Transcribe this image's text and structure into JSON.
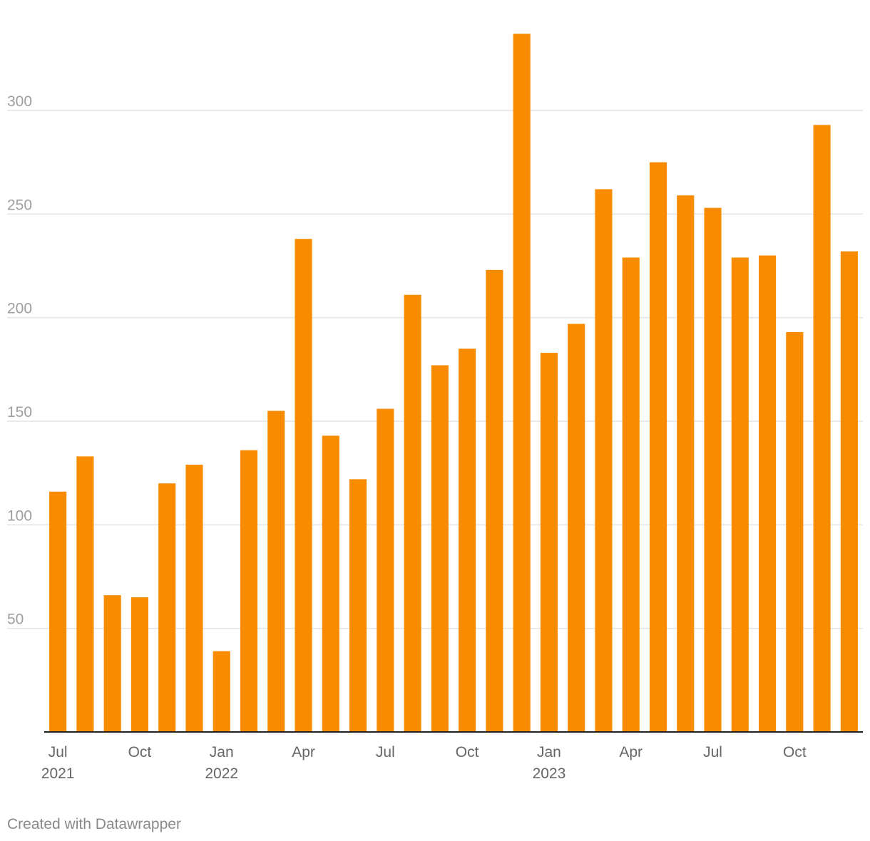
{
  "chart_data": {
    "type": "bar",
    "title": "",
    "xlabel": "",
    "ylabel": "",
    "ylim": [
      0,
      340
    ],
    "yticks": [
      50,
      100,
      150,
      200,
      250,
      300
    ],
    "categories": [
      "Jul 2021",
      "Aug 2021",
      "Sep 2021",
      "Oct 2021",
      "Nov 2021",
      "Dec 2021",
      "Jan 2022",
      "Feb 2022",
      "Mar 2022",
      "Apr 2022",
      "May 2022",
      "Jun 2022",
      "Jul 2022",
      "Aug 2022",
      "Sep 2022",
      "Oct 2022",
      "Nov 2022",
      "Dec 2022",
      "Jan 2023",
      "Feb 2023",
      "Mar 2023",
      "Apr 2023",
      "May 2023",
      "Jun 2023",
      "Jul 2023",
      "Aug 2023",
      "Sep 2023",
      "Oct 2023",
      "Nov 2023",
      "Dec 2023"
    ],
    "values": [
      116,
      133,
      66,
      65,
      120,
      129,
      39,
      136,
      155,
      238,
      143,
      122,
      156,
      211,
      177,
      185,
      223,
      337,
      183,
      197,
      262,
      229,
      275,
      259,
      253,
      229,
      230,
      193,
      293,
      232
    ],
    "xtick_labels": [
      {
        "index": 0,
        "label": "Jul",
        "year": "2021"
      },
      {
        "index": 3,
        "label": "Oct",
        "year": ""
      },
      {
        "index": 6,
        "label": "Jan",
        "year": "2022"
      },
      {
        "index": 9,
        "label": "Apr",
        "year": ""
      },
      {
        "index": 12,
        "label": "Jul",
        "year": ""
      },
      {
        "index": 15,
        "label": "Oct",
        "year": ""
      },
      {
        "index": 18,
        "label": "Jan",
        "year": "2023"
      },
      {
        "index": 21,
        "label": "Apr",
        "year": ""
      },
      {
        "index": 24,
        "label": "Jul",
        "year": ""
      },
      {
        "index": 27,
        "label": "Oct",
        "year": ""
      }
    ],
    "bar_color": "#f98b00",
    "grid": true
  },
  "footer": {
    "credit": "Created with Datawrapper"
  }
}
